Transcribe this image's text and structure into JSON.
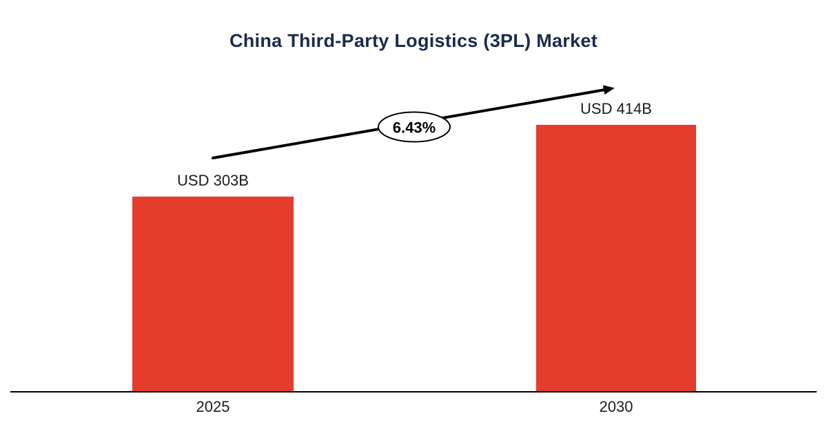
{
  "chart_data": {
    "type": "bar",
    "title": "China Third-Party Logistics (3PL) Market",
    "categories": [
      "2025",
      "2030"
    ],
    "values": [
      303,
      414
    ],
    "value_labels": [
      "USD 303B",
      "USD 414B"
    ],
    "annotation": {
      "cagr_label": "6.43%",
      "shape": "arrow-up-right-with-ellipse-badge"
    },
    "legend": "none",
    "grid": "off",
    "colors": {
      "bar": "#e43c2d",
      "title": "#1a2b4a",
      "arrow": "#000000",
      "axis": "#000000",
      "badge_border": "#000000",
      "badge_fill": "#ffffff",
      "label_text": "#1c1c1c",
      "background": "#ffffff"
    }
  }
}
